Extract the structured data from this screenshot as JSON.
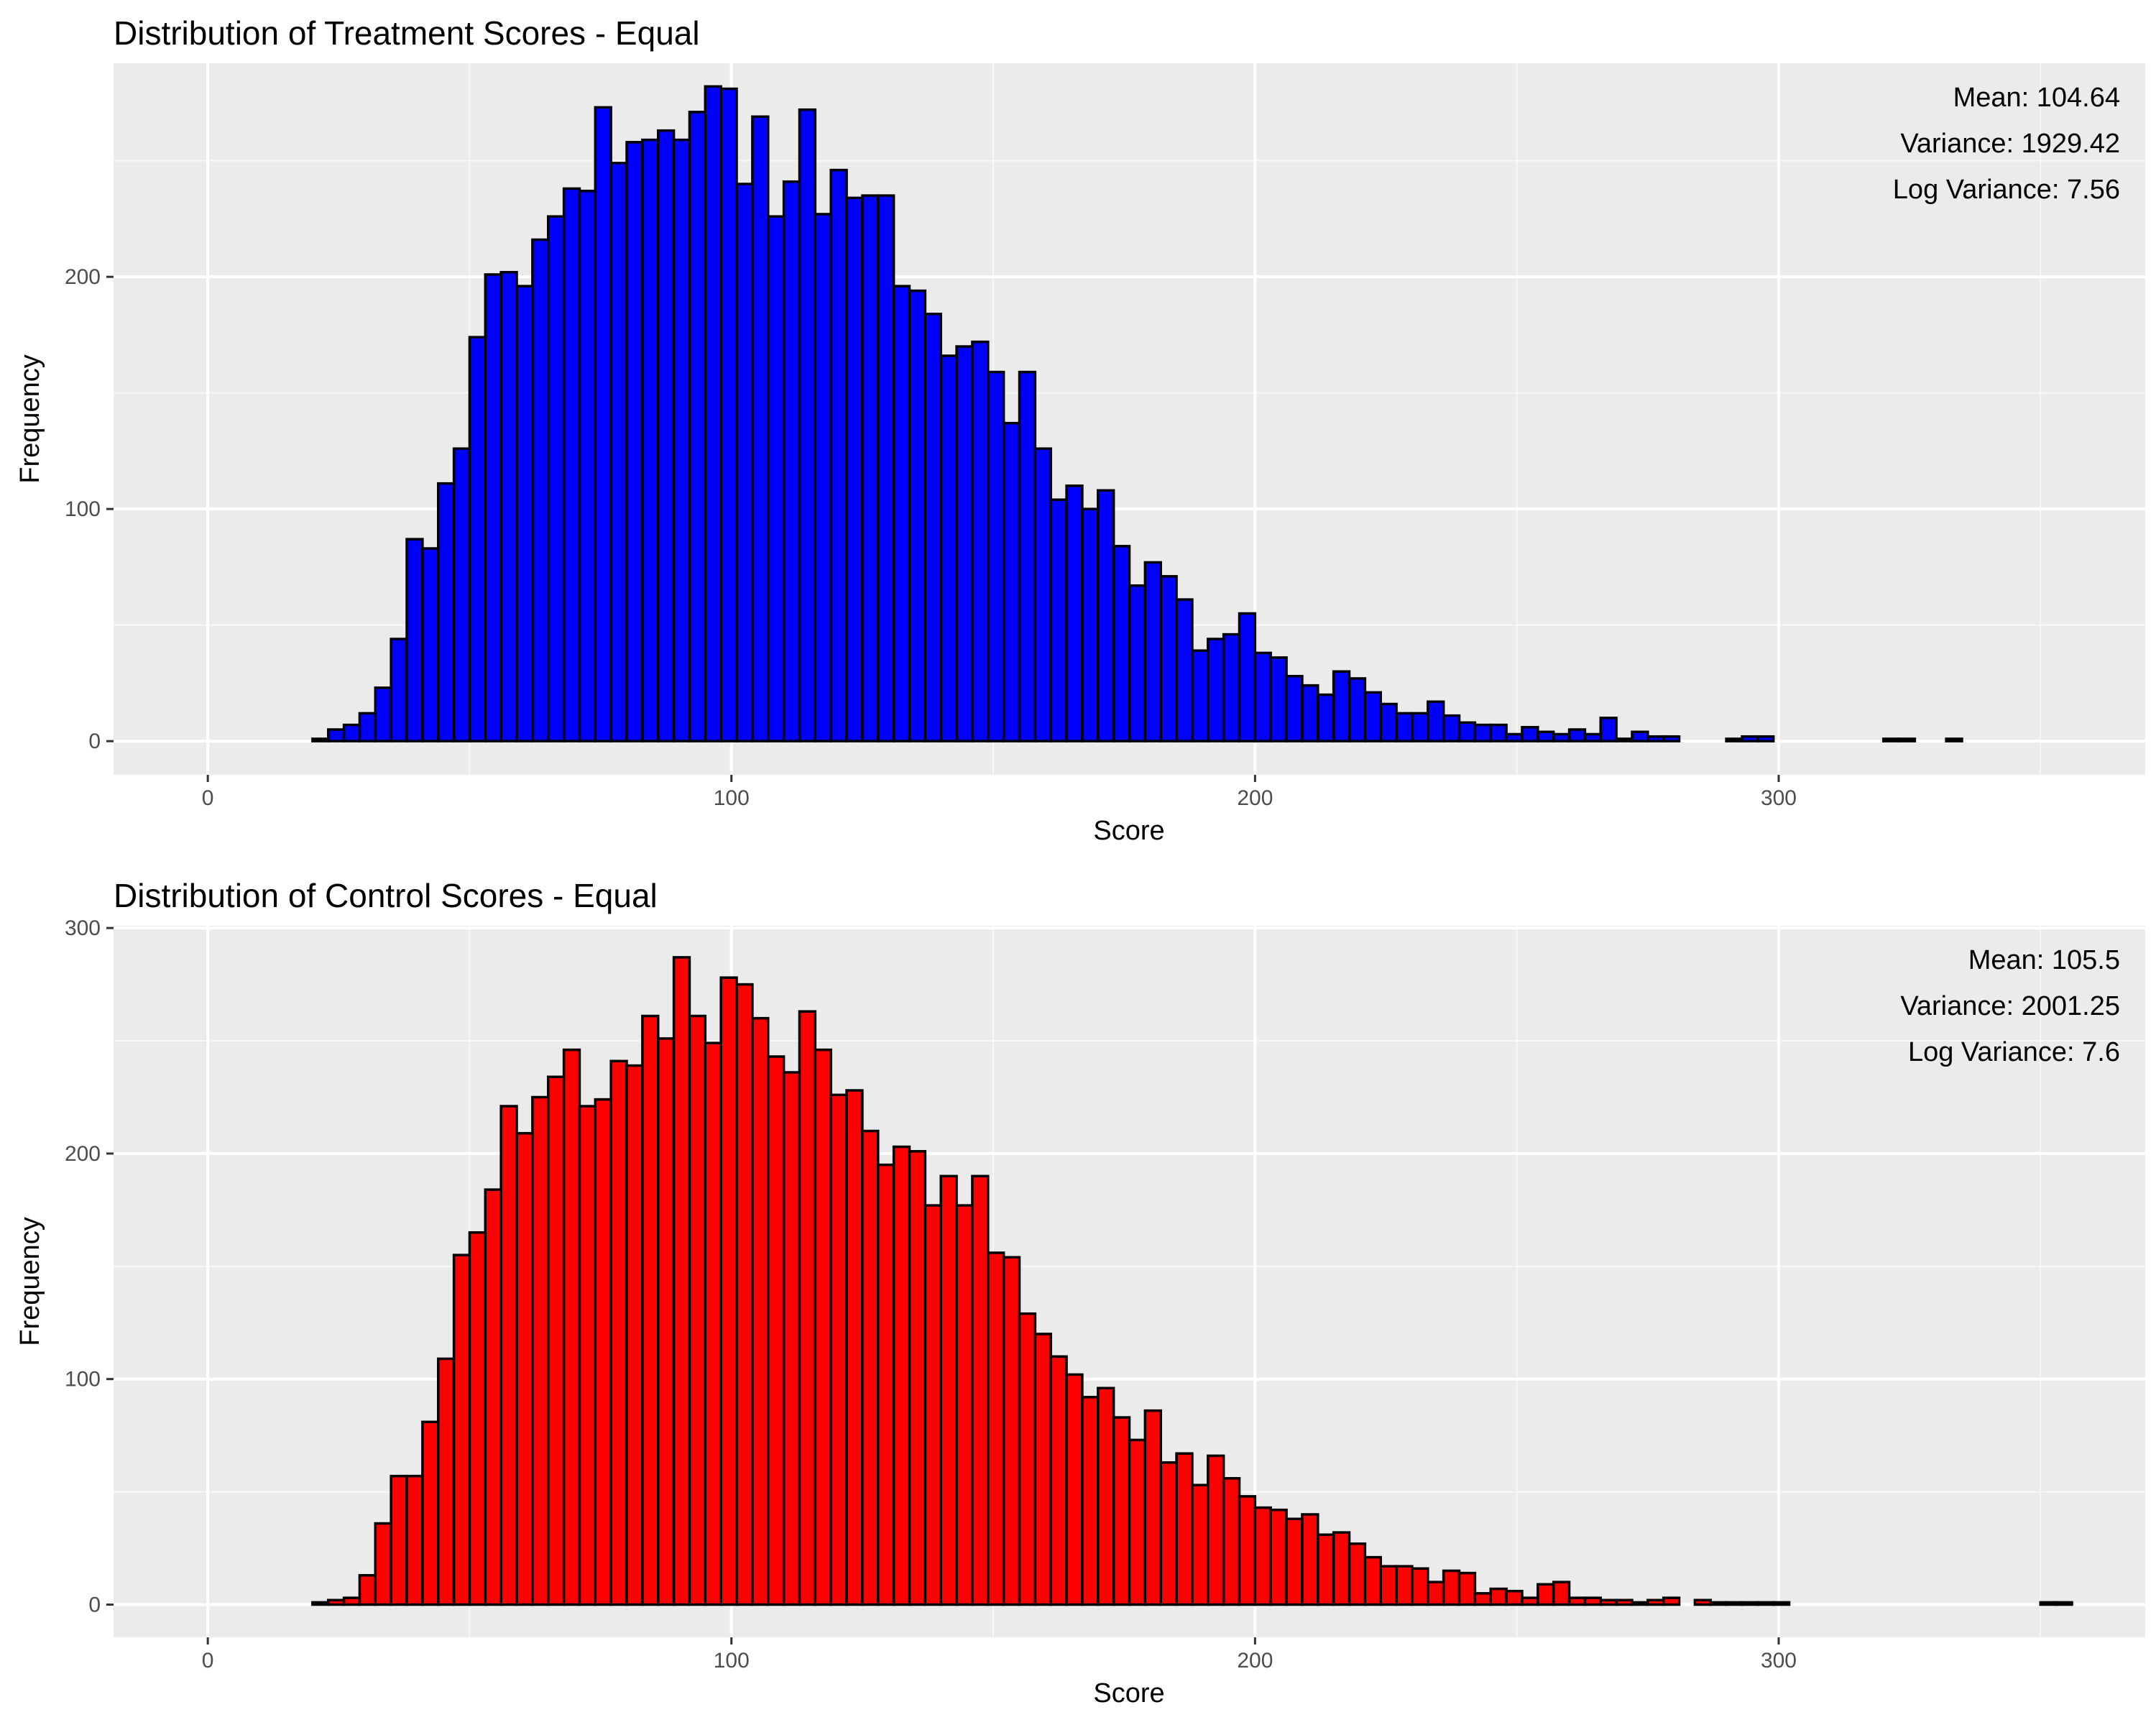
{
  "chart_data": [
    {
      "type": "bar",
      "title": "Distribution of Treatment Scores - Equal",
      "xlabel": "Score",
      "ylabel": "Frequency",
      "xlim": [
        -18,
        370
      ],
      "ylim": [
        -14.5,
        292
      ],
      "x_ticks": [
        0,
        100,
        200,
        300
      ],
      "y_ticks": [
        0,
        100,
        200
      ],
      "grid": true,
      "annotation_position": "top-right",
      "fill_color": "#0000ff",
      "outline_color": "#000000",
      "panel_color": "#ebebeb",
      "stats": [
        "Mean: 104.64",
        "Variance: 1929.42",
        "Log Variance: 7.56"
      ],
      "bin_start": 2,
      "bin_width": 3,
      "values": [
        0,
        0,
        0,
        0,
        0,
        0,
        1,
        5,
        7,
        12,
        23,
        44,
        87,
        83,
        111,
        126,
        174,
        201,
        202,
        196,
        216,
        226,
        238,
        237,
        273,
        249,
        258,
        259,
        263,
        259,
        271,
        282,
        281,
        240,
        269,
        226,
        241,
        272,
        227,
        246,
        234,
        235,
        235,
        196,
        194,
        184,
        166,
        170,
        172,
        159,
        137,
        159,
        126,
        104,
        110,
        100,
        108,
        84,
        67,
        77,
        71,
        61,
        39,
        44,
        46,
        55,
        38,
        36,
        28,
        24,
        20,
        30,
        27,
        21,
        16,
        12,
        12,
        17,
        11,
        8,
        7,
        7,
        3,
        6,
        4,
        3,
        5,
        3,
        10,
        1,
        4,
        2,
        2,
        0,
        0,
        0,
        1,
        2,
        2,
        0,
        0,
        0,
        0,
        0,
        0,
        0,
        1,
        1,
        0,
        0,
        1,
        0,
        0,
        0,
        0,
        0,
        0,
        0
      ]
    },
    {
      "type": "bar",
      "title": "Distribution of Control Scores - Equal",
      "xlabel": "Score",
      "ylabel": "Frequency",
      "xlim": [
        -18,
        370
      ],
      "ylim": [
        -14.5,
        301
      ],
      "x_ticks": [
        0,
        100,
        200,
        300
      ],
      "y_ticks": [
        0,
        100,
        200,
        300
      ],
      "grid": true,
      "annotation_position": "top-right",
      "fill_color": "#ff0000",
      "outline_color": "#000000",
      "panel_color": "#ebebeb",
      "stats": [
        "Mean: 105.5",
        "Variance: 2001.25",
        "Log Variance: 7.6"
      ],
      "bin_start": 2,
      "bin_width": 3,
      "values": [
        0,
        0,
        0,
        0,
        0,
        0,
        1,
        2,
        3,
        13,
        36,
        57,
        57,
        81,
        109,
        155,
        165,
        184,
        221,
        209,
        225,
        234,
        246,
        221,
        224,
        241,
        239,
        261,
        251,
        287,
        261,
        249,
        278,
        275,
        260,
        243,
        236,
        263,
        246,
        226,
        228,
        210,
        195,
        203,
        201,
        177,
        190,
        177,
        190,
        156,
        154,
        129,
        120,
        110,
        102,
        92,
        96,
        83,
        73,
        86,
        63,
        67,
        53,
        66,
        56,
        48,
        43,
        42,
        38,
        40,
        31,
        32,
        27,
        21,
        17,
        17,
        16,
        10,
        15,
        14,
        5,
        7,
        6,
        3,
        9,
        10,
        3,
        3,
        2,
        2,
        1,
        2,
        3,
        0,
        2,
        1,
        1,
        1,
        1,
        1,
        0,
        0,
        0,
        0,
        0,
        0,
        0,
        0,
        0,
        0,
        0,
        0,
        0,
        0,
        0,
        0,
        1,
        1,
        0
      ]
    }
  ]
}
